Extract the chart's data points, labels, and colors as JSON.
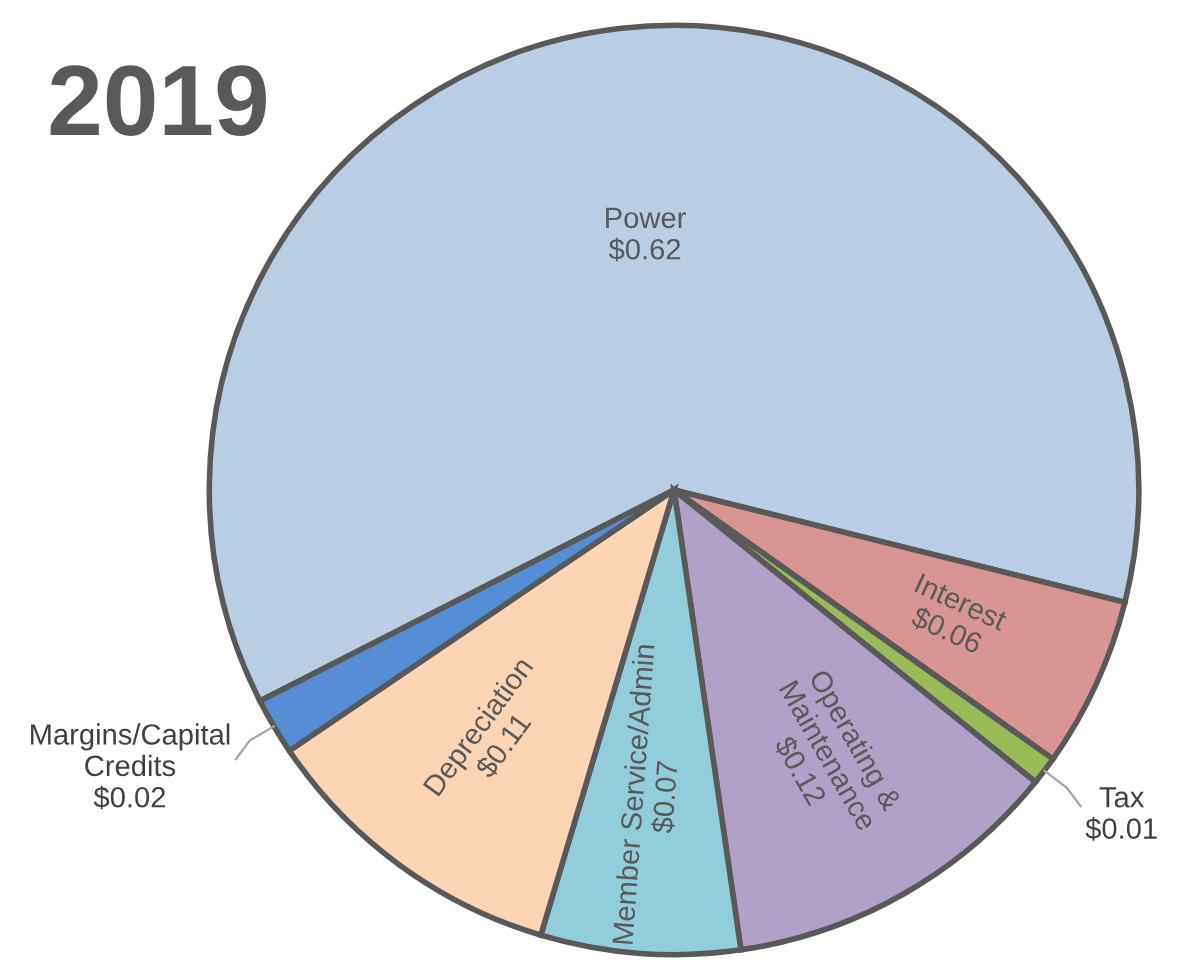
{
  "chart_data": {
    "type": "pie",
    "title": "2019",
    "categories": [
      "Power",
      "Interest",
      "Tax",
      "Operating &\nMaintenance",
      "Member Service/Admin",
      "Depreciation",
      "Margins/Capital\nCredits"
    ],
    "values": [
      0.62,
      0.06,
      0.01,
      0.12,
      0.07,
      0.11,
      0.02
    ],
    "value_labels": [
      "$0.62",
      "$0.06",
      "$0.01",
      "$0.12",
      "$0.07",
      "$0.11",
      "$0.02"
    ],
    "colors": [
      "#b9cde4",
      "#d99594",
      "#9bbb59",
      "#b1a0c7",
      "#92cddc",
      "#fcd5b5",
      "#558ed5"
    ],
    "legend": false
  }
}
